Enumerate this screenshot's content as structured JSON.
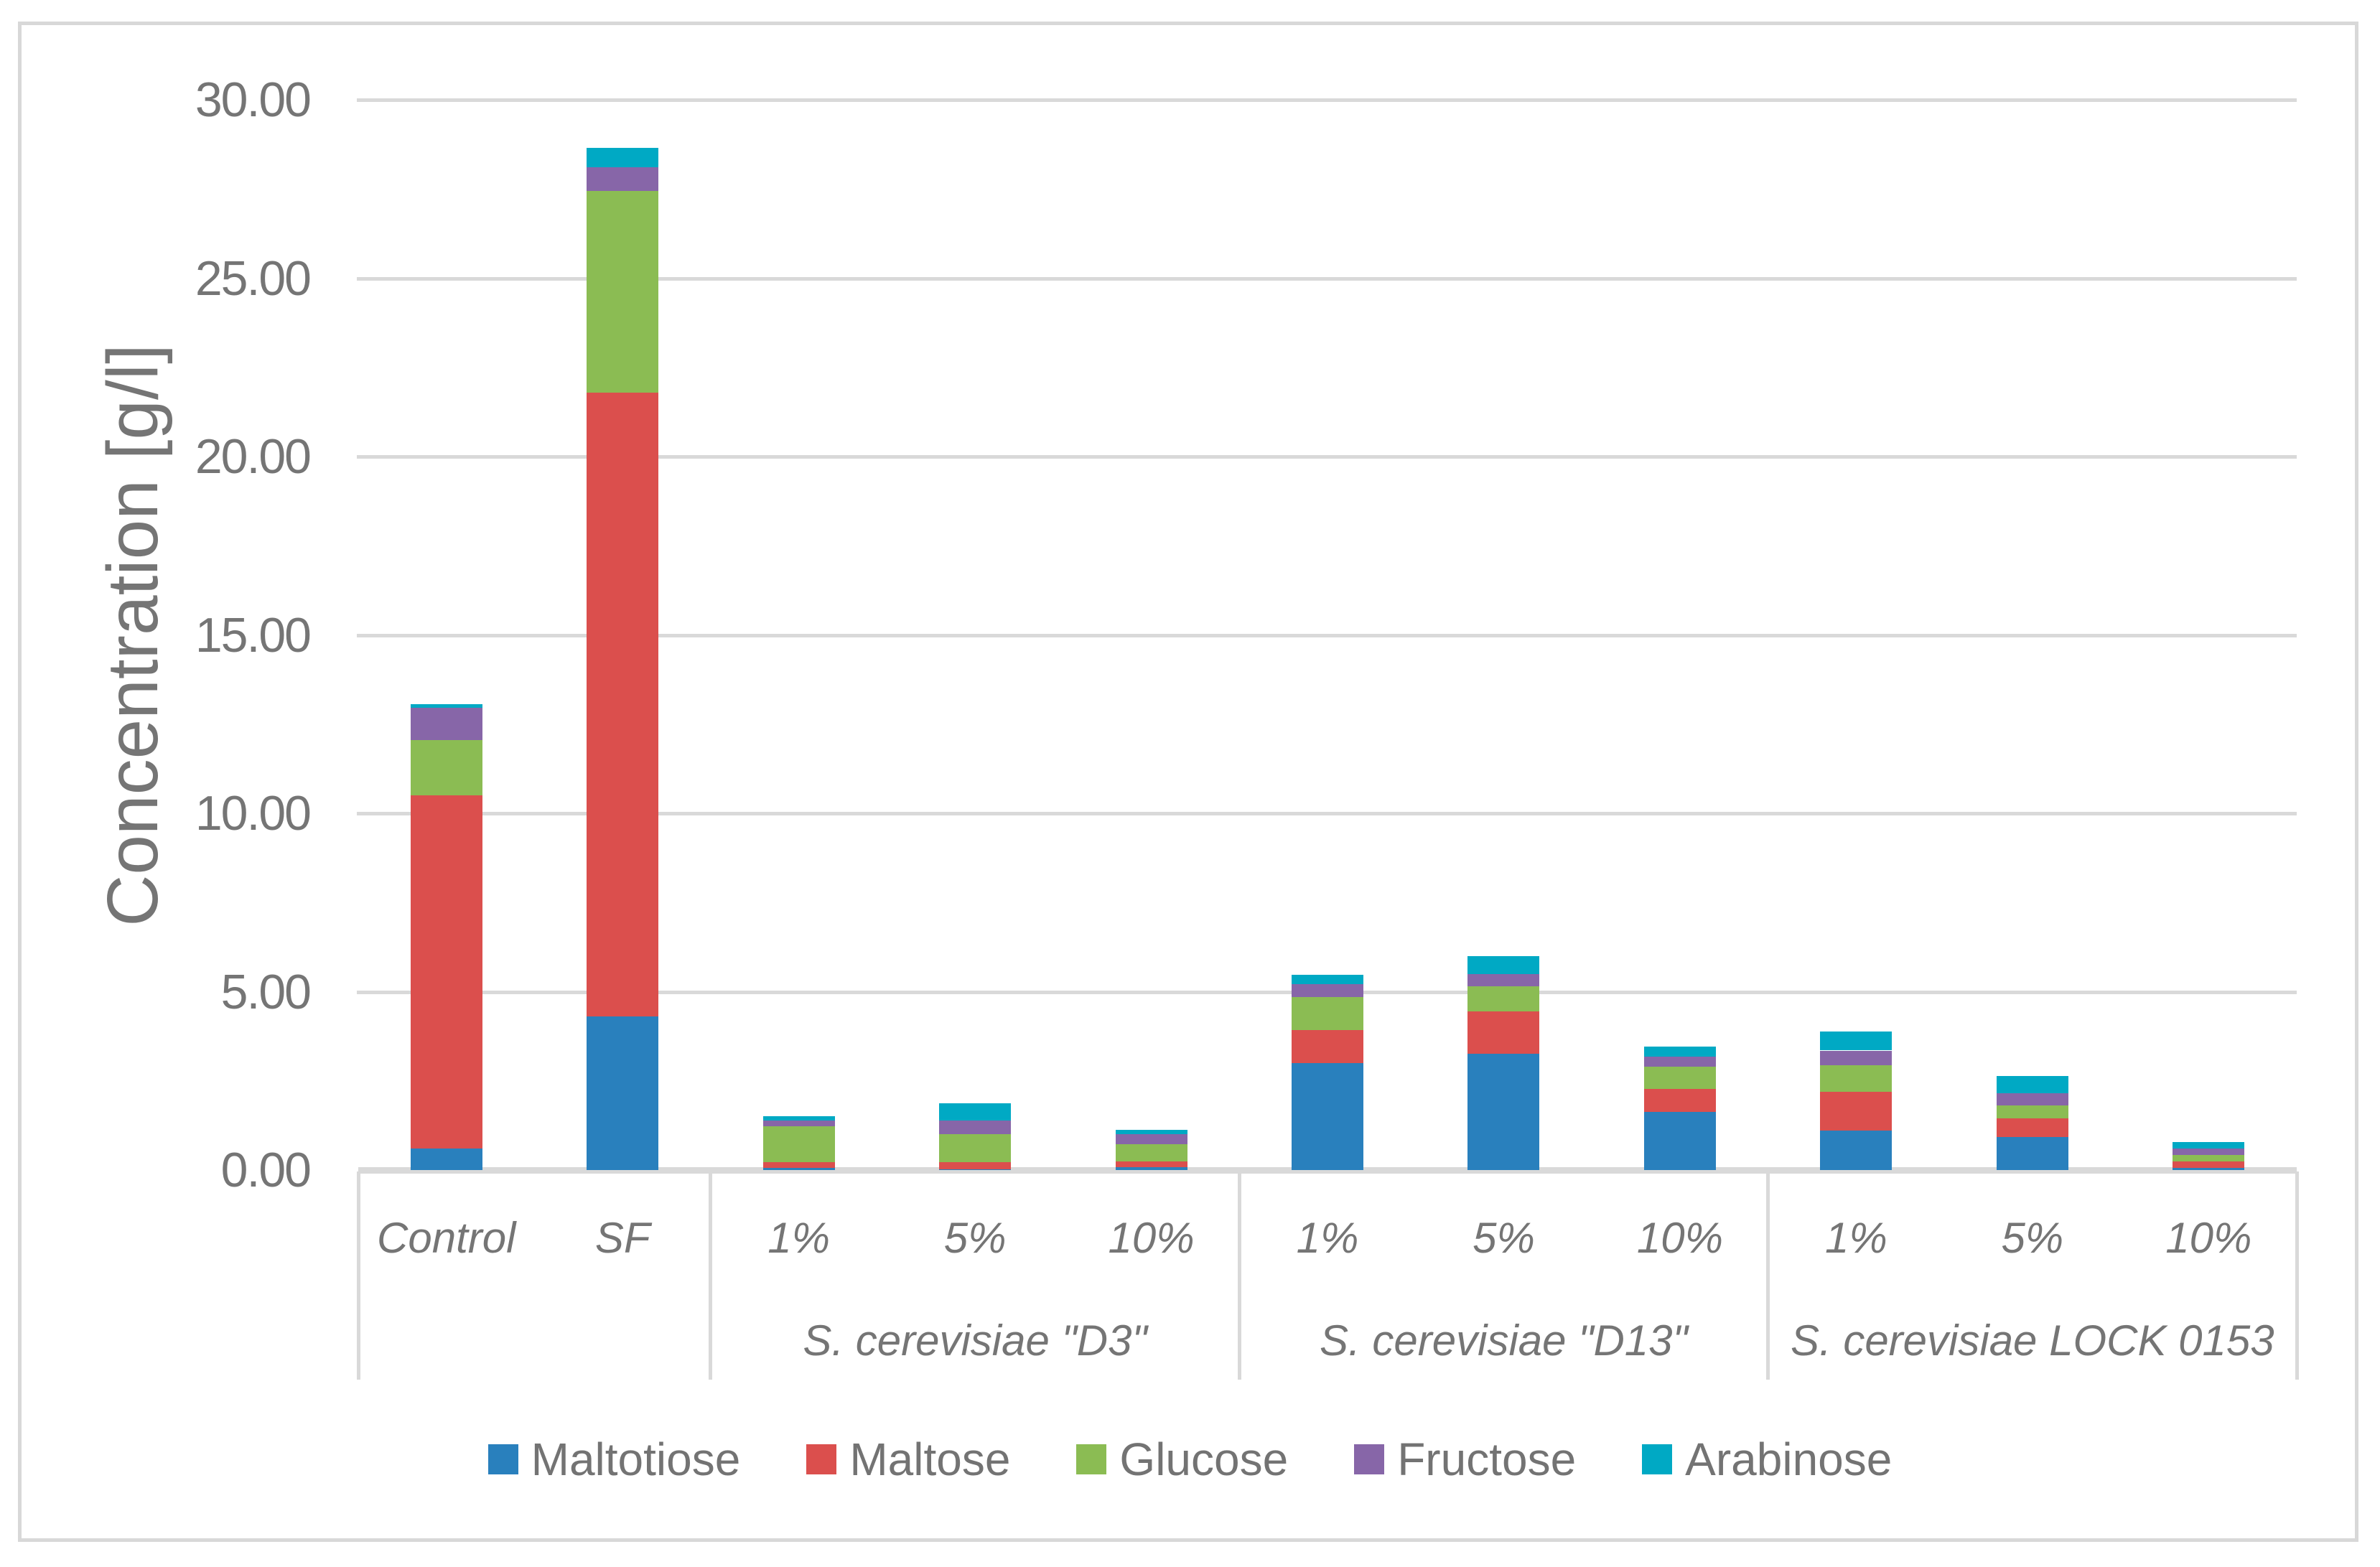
{
  "figure": {
    "background": "#ffffff",
    "border_color": "#d8d8d8",
    "text_color": "#757575",
    "gridline_color": "#d9d9d9"
  },
  "chart_data": {
    "type": "bar",
    "stacked": true,
    "title": "",
    "ylabel": "Concentration [g/l]",
    "ylim": [
      0,
      30
    ],
    "ytick_step": 5,
    "ytick_labels": [
      "0.00",
      "5.00",
      "10.00",
      "15.00",
      "20.00",
      "25.00",
      "30.00"
    ],
    "grid": true,
    "legend_position": "bottom",
    "categories": [
      "Control",
      "SF",
      "1%",
      "5%",
      "10%",
      "1%",
      "5%",
      "10%",
      "1%",
      "5%",
      "10%"
    ],
    "groups": [
      {
        "label": "",
        "start": 0,
        "end": 1
      },
      {
        "label": "S. cerevisiae \"D3\"",
        "start": 2,
        "end": 4
      },
      {
        "label": "S. cerevisiae \"D13\"",
        "start": 5,
        "end": 7
      },
      {
        "label": "S. cerevisiae LOCK 0153",
        "start": 8,
        "end": 10
      }
    ],
    "series": [
      {
        "name": "Maltotiose",
        "color": "#2980bd",
        "values": [
          0.6,
          4.3,
          0.06,
          0.03,
          0.08,
          3.0,
          3.25,
          1.63,
          1.1,
          0.92,
          0.06
        ]
      },
      {
        "name": "Maltose",
        "color": "#db4f4d",
        "values": [
          9.9,
          17.5,
          0.16,
          0.2,
          0.17,
          0.92,
          1.2,
          0.65,
          1.1,
          0.52,
          0.18
        ]
      },
      {
        "name": "Glucose",
        "color": "#8bbc53",
        "values": [
          1.55,
          5.65,
          1.0,
          0.78,
          0.48,
          0.93,
          0.7,
          0.62,
          0.74,
          0.37,
          0.19
        ]
      },
      {
        "name": "Fructose",
        "color": "#8766a8",
        "values": [
          0.9,
          0.65,
          0.17,
          0.38,
          0.28,
          0.37,
          0.35,
          0.28,
          0.41,
          0.34,
          0.18
        ]
      },
      {
        "name": "Arabinose",
        "color": "#00a9c4",
        "values": [
          0.1,
          0.55,
          0.12,
          0.48,
          0.11,
          0.26,
          0.5,
          0.28,
          0.53,
          0.49,
          0.17
        ]
      }
    ]
  }
}
